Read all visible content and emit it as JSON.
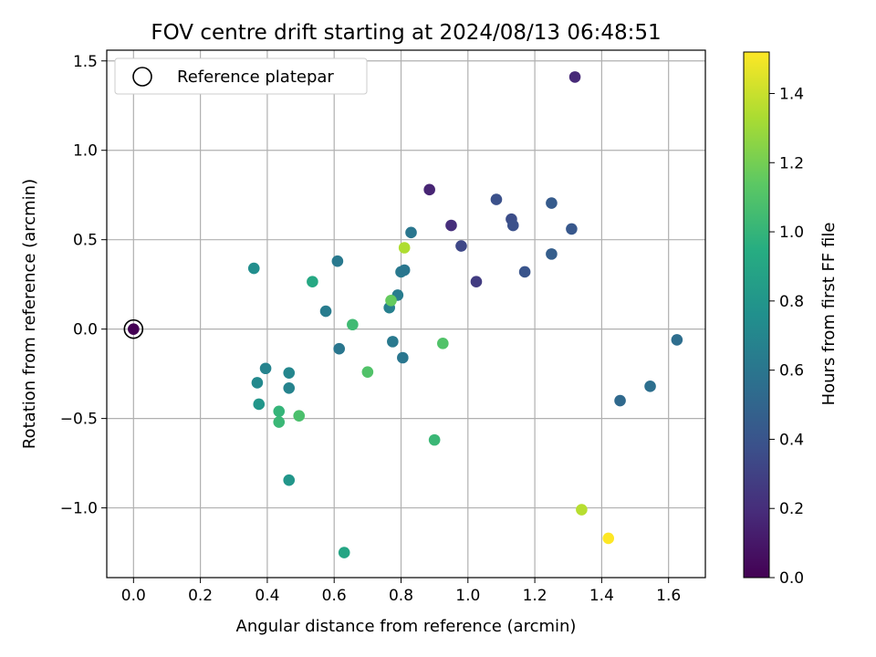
{
  "chart_data": {
    "type": "scatter",
    "title": "FOV centre drift starting at 2024/08/13 06:48:51",
    "xlabel": "Angular distance from reference (arcmin)",
    "ylabel": "Rotation from reference (arcmin)",
    "xlim": [
      -0.08,
      1.71
    ],
    "ylim": [
      -1.39,
      1.56
    ],
    "xticks": [
      0.0,
      0.2,
      0.4,
      0.6,
      0.8,
      1.0,
      1.2,
      1.4,
      1.6
    ],
    "xtick_labels": [
      "0.0",
      "0.2",
      "0.4",
      "0.6",
      "0.8",
      "1.0",
      "1.2",
      "1.4",
      "1.6"
    ],
    "yticks": [
      -1.0,
      -0.5,
      0.0,
      0.5,
      1.0,
      1.5
    ],
    "ytick_labels": [
      "−1.0",
      "−0.5",
      "0.0",
      "0.5",
      "1.0",
      "1.5"
    ],
    "grid": true,
    "legend": {
      "placement": "top-left",
      "label": "Reference platepar"
    },
    "colorbar": {
      "label": "Hours from first FF file",
      "colormap": "viridis",
      "range": [
        0.0,
        1.52
      ],
      "ticks": [
        0.0,
        0.2,
        0.4,
        0.6,
        0.8,
        1.0,
        1.2,
        1.4
      ],
      "tick_labels": [
        "0.0",
        "0.2",
        "0.4",
        "0.6",
        "0.8",
        "1.0",
        "1.2",
        "1.4"
      ]
    },
    "reference_point": {
      "x": 0.0,
      "y": 0.0
    },
    "points": [
      {
        "x": 0.0,
        "y": 0.0,
        "hours": 0.0
      },
      {
        "x": 1.32,
        "y": 1.41,
        "hours": 0.18
      },
      {
        "x": 0.885,
        "y": 0.78,
        "hours": 0.16
      },
      {
        "x": 0.95,
        "y": 0.58,
        "hours": 0.2
      },
      {
        "x": 0.98,
        "y": 0.465,
        "hours": 0.33
      },
      {
        "x": 1.025,
        "y": 0.265,
        "hours": 0.27
      },
      {
        "x": 1.085,
        "y": 0.725,
        "hours": 0.38
      },
      {
        "x": 1.13,
        "y": 0.615,
        "hours": 0.36
      },
      {
        "x": 1.135,
        "y": 0.58,
        "hours": 0.38
      },
      {
        "x": 1.17,
        "y": 0.32,
        "hours": 0.4
      },
      {
        "x": 1.25,
        "y": 0.705,
        "hours": 0.44
      },
      {
        "x": 1.25,
        "y": 0.42,
        "hours": 0.46
      },
      {
        "x": 1.31,
        "y": 0.56,
        "hours": 0.42
      },
      {
        "x": 1.625,
        "y": -0.06,
        "hours": 0.55
      },
      {
        "x": 1.455,
        "y": -0.4,
        "hours": 0.52
      },
      {
        "x": 1.545,
        "y": -0.32,
        "hours": 0.56
      },
      {
        "x": 0.83,
        "y": 0.54,
        "hours": 0.6
      },
      {
        "x": 0.8,
        "y": 0.32,
        "hours": 0.62
      },
      {
        "x": 0.81,
        "y": 0.33,
        "hours": 0.6
      },
      {
        "x": 0.79,
        "y": 0.19,
        "hours": 0.64
      },
      {
        "x": 0.765,
        "y": 0.12,
        "hours": 0.66
      },
      {
        "x": 0.775,
        "y": -0.07,
        "hours": 0.62
      },
      {
        "x": 0.805,
        "y": -0.16,
        "hours": 0.6
      },
      {
        "x": 0.61,
        "y": 0.38,
        "hours": 0.62
      },
      {
        "x": 0.575,
        "y": 0.1,
        "hours": 0.64
      },
      {
        "x": 0.615,
        "y": -0.11,
        "hours": 0.6
      },
      {
        "x": 0.36,
        "y": 0.34,
        "hours": 0.75
      },
      {
        "x": 0.37,
        "y": -0.3,
        "hours": 0.72
      },
      {
        "x": 0.395,
        "y": -0.22,
        "hours": 0.68
      },
      {
        "x": 0.375,
        "y": -0.42,
        "hours": 0.8
      },
      {
        "x": 0.465,
        "y": -0.245,
        "hours": 0.7
      },
      {
        "x": 0.465,
        "y": -0.33,
        "hours": 0.68
      },
      {
        "x": 0.465,
        "y": -0.845,
        "hours": 0.8
      },
      {
        "x": 0.535,
        "y": 0.265,
        "hours": 0.92
      },
      {
        "x": 0.63,
        "y": -1.25,
        "hours": 0.9
      },
      {
        "x": 0.435,
        "y": -0.46,
        "hours": 1.0
      },
      {
        "x": 0.435,
        "y": -0.52,
        "hours": 1.02
      },
      {
        "x": 0.495,
        "y": -0.485,
        "hours": 1.08
      },
      {
        "x": 0.655,
        "y": 0.025,
        "hours": 1.04
      },
      {
        "x": 0.7,
        "y": -0.24,
        "hours": 1.1
      },
      {
        "x": 0.9,
        "y": -0.62,
        "hours": 1.02
      },
      {
        "x": 0.925,
        "y": -0.08,
        "hours": 1.1
      },
      {
        "x": 0.77,
        "y": 0.16,
        "hours": 1.16
      },
      {
        "x": 0.81,
        "y": 0.455,
        "hours": 1.34
      },
      {
        "x": 1.34,
        "y": -1.01,
        "hours": 1.36
      },
      {
        "x": 1.42,
        "y": -1.17,
        "hours": 1.52
      }
    ]
  }
}
